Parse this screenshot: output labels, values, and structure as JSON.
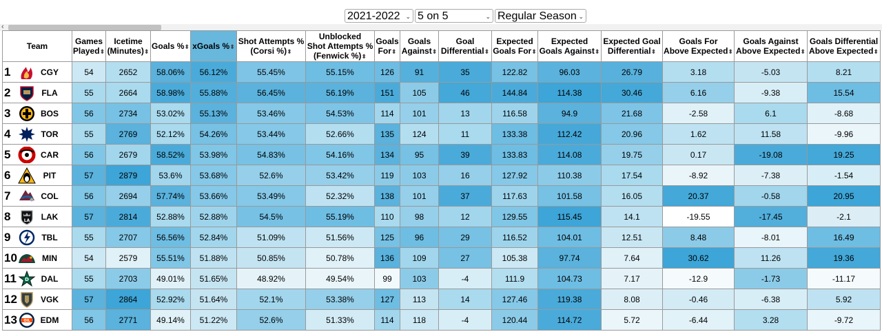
{
  "filters": {
    "season": "2021-2022",
    "situation": "5 on 5",
    "season_type": "Regular Season"
  },
  "columns": [
    {
      "key": "team",
      "label": "Team",
      "sort": ""
    },
    {
      "key": "gp",
      "label": "Games\nPlayed",
      "sort": "⬍"
    },
    {
      "key": "ice",
      "label": "Icetime\n(Minutes)",
      "sort": "⬍"
    },
    {
      "key": "gpct",
      "label": "Goals %",
      "sort": "⬍"
    },
    {
      "key": "xgpct",
      "label": "xGoals %",
      "sort": "⬍"
    },
    {
      "key": "corsi",
      "label": "Shot Attempts %\n(Corsi %)",
      "sort": "⬍"
    },
    {
      "key": "fenwick",
      "label": "Unblocked\nShot Attempts %\n(Fenwick %)",
      "sort": "⬍"
    },
    {
      "key": "gf",
      "label": "Goals\nFor",
      "sort": "⬍"
    },
    {
      "key": "ga",
      "label": "Goals\nAgainst",
      "sort": "⬍"
    },
    {
      "key": "gd",
      "label": "Goal\nDifferential",
      "sort": "⬍"
    },
    {
      "key": "xgf",
      "label": "Expected\nGoals For",
      "sort": "⬍"
    },
    {
      "key": "xga",
      "label": "Expected\nGoals Against",
      "sort": "⬍"
    },
    {
      "key": "xgd",
      "label": "Expected Goal\nDifferential",
      "sort": "⬍"
    },
    {
      "key": "gfae",
      "label": "Goals For\nAbove Expected",
      "sort": "⬍"
    },
    {
      "key": "gaae",
      "label": "Goals Against\nAbove Expected",
      "sort": "⬍"
    },
    {
      "key": "gdae",
      "label": "Goals Differential\nAbove Expected",
      "sort": "⬍"
    }
  ],
  "rows": [
    {
      "rank": "1",
      "team": "CGY",
      "logo": "flames-logo-icon",
      "cells": [
        "54",
        "2652",
        "58.06%",
        "56.12%",
        "55.45%",
        "55.15%",
        "126",
        "91",
        "35",
        "122.82",
        "96.03",
        "26.79",
        "3.18",
        "-5.03",
        "8.21"
      ],
      "colors": [
        "#cce8f4",
        "#b3def0",
        "#5ab2dd",
        "#4aabda",
        "#7ec4e6",
        "#6ebde3",
        "#6dbce3",
        "#55b0dc",
        "#4aabda",
        "#76c1e4",
        "#5ab2dd",
        "#58b1dc",
        "#b3def0",
        "#c5e4f2",
        "#b3def0"
      ]
    },
    {
      "rank": "2",
      "team": "FLA",
      "logo": "panthers-logo-icon",
      "cells": [
        "55",
        "2664",
        "58.98%",
        "55.88%",
        "56.45%",
        "56.19%",
        "151",
        "105",
        "46",
        "144.84",
        "114.38",
        "30.46",
        "6.16",
        "-9.38",
        "15.54"
      ],
      "colors": [
        "#a9daee",
        "#a9daee",
        "#4aabda",
        "#52afdc",
        "#5ab2dd",
        "#5ab2dd",
        "#4aabda",
        "#8ccbe8",
        "#44a8d8",
        "#4aabda",
        "#3da5d7",
        "#44a8d8",
        "#95cfea",
        "#d8eef7",
        "#6ebde3"
      ]
    },
    {
      "rank": "3",
      "team": "BOS",
      "logo": "bruins-logo-icon",
      "cells": [
        "56",
        "2734",
        "53.02%",
        "55.13%",
        "53.46%",
        "54.53%",
        "114",
        "101",
        "13",
        "116.58",
        "94.9",
        "21.68",
        "-2.58",
        "6.1",
        "-8.68"
      ],
      "colors": [
        "#80c6e6",
        "#76c1e4",
        "#a9daee",
        "#5ab2dd",
        "#85c8e7",
        "#7ec4e6",
        "#a1d6ed",
        "#95cfea",
        "#a1d6ed",
        "#9dd4ec",
        "#5ab2dd",
        "#7ec4e6",
        "#e0f1f8",
        "#a9daee",
        "#e0f1f8"
      ]
    },
    {
      "rank": "4",
      "team": "TOR",
      "logo": "maple-leafs-logo-icon",
      "cells": [
        "55",
        "2769",
        "52.12%",
        "54.26%",
        "53.44%",
        "52.66%",
        "135",
        "124",
        "11",
        "133.38",
        "112.42",
        "20.96",
        "1.62",
        "11.58",
        "-9.96"
      ],
      "colors": [
        "#a9daee",
        "#5ab2dd",
        "#a9daee",
        "#76c1e4",
        "#85c8e7",
        "#b3def0",
        "#5ab2dd",
        "#b3def0",
        "#a9daee",
        "#6ebde3",
        "#45a8d8",
        "#85c8e7",
        "#bee2f1",
        "#bee2f1",
        "#ebf6fb"
      ]
    },
    {
      "rank": "5",
      "team": "CAR",
      "logo": "hurricanes-logo-icon",
      "cells": [
        "56",
        "2679",
        "58.52%",
        "53.98%",
        "54.83%",
        "54.16%",
        "134",
        "95",
        "39",
        "133.83",
        "114.08",
        "19.75",
        "0.17",
        "-19.08",
        "19.25"
      ],
      "colors": [
        "#80c6e6",
        "#a1d6ed",
        "#4aabda",
        "#80c6e6",
        "#76c1e4",
        "#80c6e6",
        "#5ab2dd",
        "#76c1e4",
        "#4aabda",
        "#6ebde3",
        "#4aabda",
        "#95cfea",
        "#c9e6f3",
        "#4aabda",
        "#44a8d8"
      ]
    },
    {
      "rank": "6",
      "team": "PIT",
      "logo": "penguins-logo-icon",
      "cells": [
        "57",
        "2879",
        "53.6%",
        "53.68%",
        "52.6%",
        "53.42%",
        "119",
        "103",
        "16",
        "127.92",
        "110.38",
        "17.54",
        "-8.92",
        "-7.38",
        "-1.54"
      ],
      "colors": [
        "#5ab2dd",
        "#3da5d7",
        "#a1d6ed",
        "#85c8e7",
        "#95cfea",
        "#95cfea",
        "#8ccbe8",
        "#8ccbe8",
        "#95cfea",
        "#85c8e7",
        "#8ccbe8",
        "#a9daee",
        "#eaf5fa",
        "#dceff7",
        "#d8eef7"
      ]
    },
    {
      "rank": "7",
      "team": "COL",
      "logo": "avalanche-logo-icon",
      "cells": [
        "56",
        "2694",
        "57.74%",
        "53.66%",
        "53.49%",
        "52.32%",
        "138",
        "101",
        "37",
        "117.63",
        "101.58",
        "16.05",
        "20.37",
        "-0.58",
        "20.95"
      ],
      "colors": [
        "#80c6e6",
        "#95cfea",
        "#5ab2dd",
        "#85c8e7",
        "#85c8e7",
        "#bee2f1",
        "#5ab2dd",
        "#95cfea",
        "#4aabda",
        "#9dd4ec",
        "#76c1e4",
        "#b3def0",
        "#44a8d8",
        "#a1d6ed",
        "#3da5d7"
      ]
    },
    {
      "rank": "8",
      "team": "LAK",
      "logo": "kings-logo-icon",
      "cells": [
        "57",
        "2814",
        "52.88%",
        "52.88%",
        "54.5%",
        "55.19%",
        "110",
        "98",
        "12",
        "129.55",
        "115.45",
        "14.1",
        "-19.55",
        "-17.45",
        "-2.1"
      ],
      "colors": [
        "#5ab2dd",
        "#4aabda",
        "#a9daee",
        "#9dd4ec",
        "#76c1e4",
        "#6ebde3",
        "#a9daee",
        "#95cfea",
        "#a1d6ed",
        "#80c6e6",
        "#3da5d7",
        "#bee2f1",
        "#ffffff",
        "#52afdc",
        "#dcedf5"
      ]
    },
    {
      "rank": "9",
      "team": "TBL",
      "logo": "lightning-logo-icon",
      "cells": [
        "55",
        "2707",
        "56.56%",
        "52.84%",
        "51.09%",
        "51.56%",
        "125",
        "96",
        "29",
        "116.52",
        "104.01",
        "12.51",
        "8.48",
        "-8.01",
        "16.49"
      ],
      "colors": [
        "#a9daee",
        "#85c8e7",
        "#6ebde3",
        "#a1d6ed",
        "#bee2f1",
        "#cce8f4",
        "#76c1e4",
        "#6ebde3",
        "#76c1e4",
        "#9dd4ec",
        "#6ebde3",
        "#c9e6f3",
        "#8ccbe8",
        "#e8f5fa",
        "#6ebde3"
      ]
    },
    {
      "rank": "10",
      "team": "MIN",
      "logo": "wild-logo-icon",
      "cells": [
        "54",
        "2579",
        "55.51%",
        "51.88%",
        "50.85%",
        "50.78%",
        "136",
        "109",
        "27",
        "105.38",
        "97.74",
        "7.64",
        "30.62",
        "11.26",
        "19.36"
      ],
      "colors": [
        "#cce8f4",
        "#e0f1f8",
        "#80c6e6",
        "#bee2f1",
        "#c5e4f2",
        "#e0f1f8",
        "#5ab2dd",
        "#a1d6ed",
        "#76c1e4",
        "#cce8f4",
        "#5ab2dd",
        "#e0f1f8",
        "#3da5d7",
        "#bee2f1",
        "#44a8d8"
      ]
    },
    {
      "rank": "11",
      "team": "DAL",
      "logo": "stars-logo-icon",
      "cells": [
        "55",
        "2703",
        "49.01%",
        "51.65%",
        "48.92%",
        "49.54%",
        "99",
        "103",
        "-4",
        "111.9",
        "104.73",
        "7.17",
        "-12.9",
        "-1.73",
        "-11.17"
      ],
      "colors": [
        "#a9daee",
        "#8ccbe8",
        "#e0f1f8",
        "#c5e4f2",
        "#e5f3f9",
        "#eaf5fa",
        "#f2f9fc",
        "#8ccbe8",
        "#d8eef7",
        "#b3def0",
        "#6ebde3",
        "#e5f3f9",
        "#f5fafd",
        "#8ccbe8",
        "#f5fafd"
      ]
    },
    {
      "rank": "12",
      "team": "VGK",
      "logo": "golden-knights-logo-icon",
      "cells": [
        "57",
        "2864",
        "52.92%",
        "51.64%",
        "52.1%",
        "53.38%",
        "127",
        "113",
        "14",
        "127.46",
        "119.38",
        "8.08",
        "-0.46",
        "-6.38",
        "5.92"
      ],
      "colors": [
        "#5ab2dd",
        "#3da5d7",
        "#a9daee",
        "#c5e4f2",
        "#a1d6ed",
        "#95cfea",
        "#6ebde3",
        "#c5e4f2",
        "#a9daee",
        "#85c8e7",
        "#4aabda",
        "#dceff7",
        "#d3ebf5",
        "#d8eef7",
        "#bee2f1"
      ]
    },
    {
      "rank": "13",
      "team": "EDM",
      "logo": "oilers-logo-icon",
      "cells": [
        "56",
        "2771",
        "49.14%",
        "51.22%",
        "52.6%",
        "51.33%",
        "114",
        "118",
        "-4",
        "120.44",
        "114.72",
        "5.72",
        "-6.44",
        "3.28",
        "-9.72"
      ],
      "colors": [
        "#80c6e6",
        "#5ab2dd",
        "#e0f1f8",
        "#cce8f4",
        "#95cfea",
        "#d3ebf5",
        "#a1d6ed",
        "#cce8f4",
        "#d8eef7",
        "#8ccbe8",
        "#4aabda",
        "#ebf6fb",
        "#e2f2f9",
        "#b3def0",
        "#e8f5fa"
      ]
    }
  ]
}
